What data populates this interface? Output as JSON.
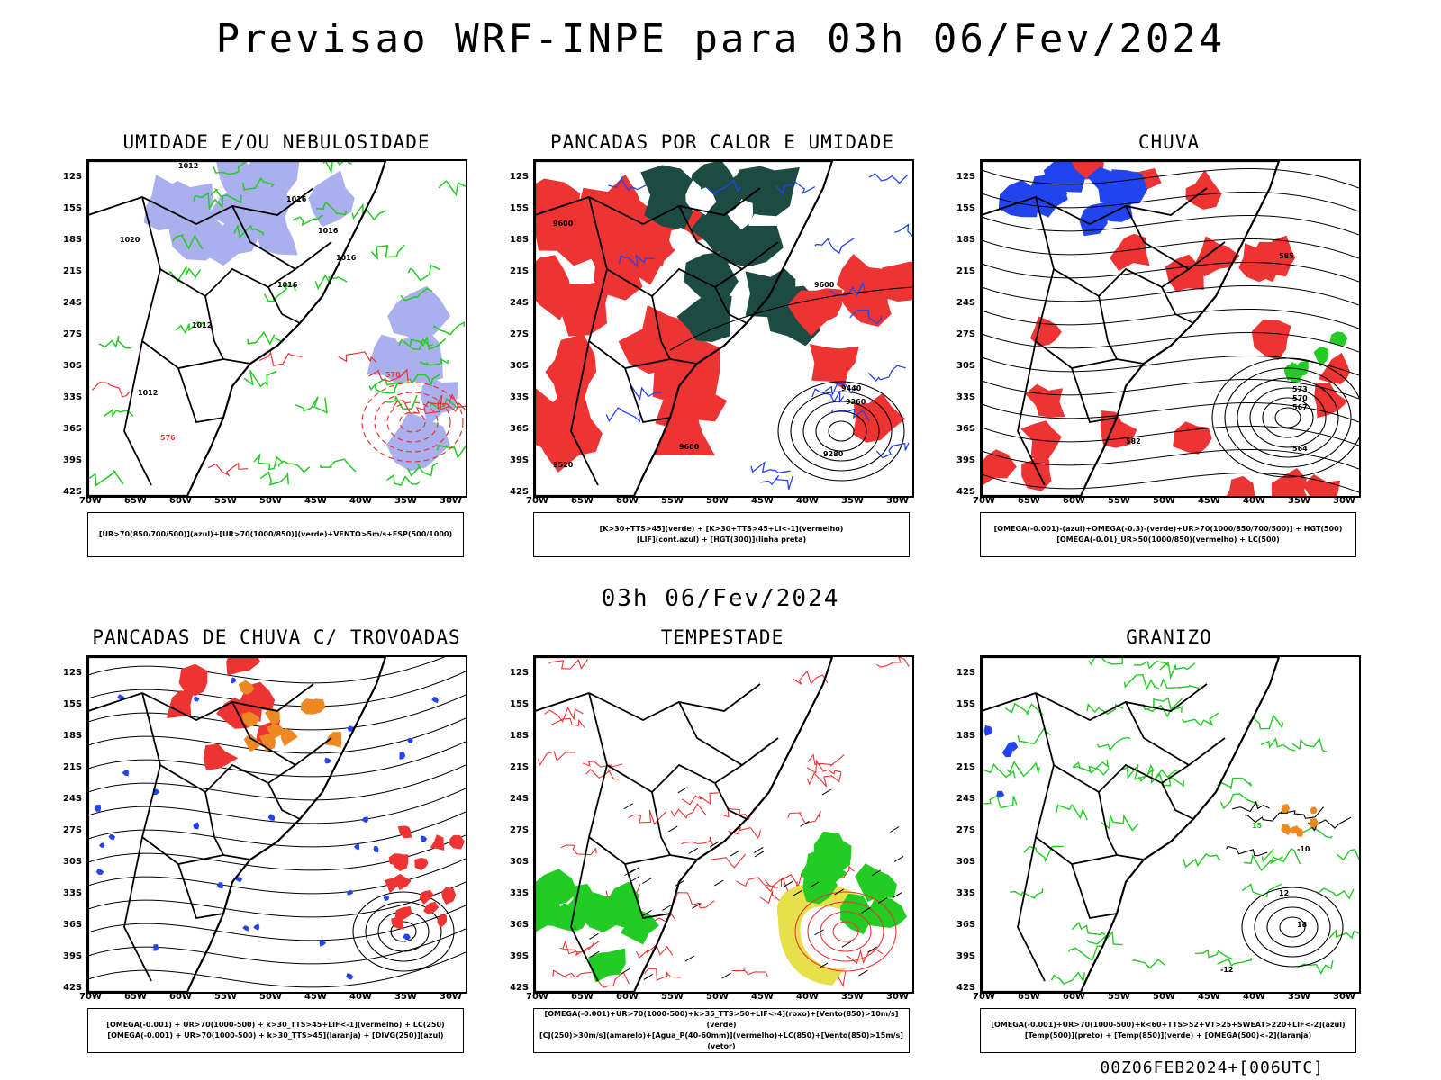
{
  "header": {
    "main_title": "Previsao WRF-INPE  para 03h 06/Fev/2024",
    "mid_title": "03h 06/Fev/2024",
    "footer_stamp": "00Z06FEB2024+[006UTC]"
  },
  "axes": {
    "lat_ticks": [
      "12S",
      "15S",
      "18S",
      "21S",
      "24S",
      "27S",
      "30S",
      "33S",
      "36S",
      "39S",
      "42S"
    ],
    "lon_ticks": [
      "70W",
      "65W",
      "60W",
      "55W",
      "50W",
      "45W",
      "40W",
      "35W",
      "30W"
    ]
  },
  "colors": {
    "green": "#22cc22",
    "red": "#ee3333",
    "blue": "#2244ee",
    "lavender": "#aab0ee",
    "darkteal": "#1e4a44",
    "orange": "#ee8822",
    "yellow": "#e6e04a",
    "magenta": "#cc22cc",
    "black": "#000000"
  },
  "panels": [
    {
      "id": "umidade",
      "title": "UMIDADE E/OU NEBULOSIDADE",
      "legend": [
        "[UR>70(850/700/500)](azul)+[UR>70(1000/850)](verde)+VENTO>5m/s+ESP(500/1000)"
      ],
      "contour_labels": [
        "1012",
        "1016",
        "1016",
        "1016",
        "1012",
        "1012",
        "1020",
        "1016",
        "576",
        "570"
      ]
    },
    {
      "id": "pancadas_calor",
      "title": "PANCADAS POR CALOR E UMIDADE",
      "legend": [
        "[K>30+TTS>45](verde) + [K>30+TTS>45+LI<-1](vermelho)",
        "[LIF](cont.azul) + [HGT(300)](linha preta)"
      ],
      "contour_labels": [
        "9600",
        "9600",
        "9440",
        "9360",
        "9280",
        "9600",
        "9520"
      ]
    },
    {
      "id": "chuva",
      "title": "CHUVA",
      "legend": [
        "[OMEGA(-0.001)-(azul)+OMEGA(-0.3)-(verde)+UR>70(1000/850/700/500)] + HGT(500)",
        "[OMEGA(-0.01)_UR>50(1000/850)(vermelho) + LC(500)"
      ],
      "contour_labels": [
        "585",
        "573",
        "570",
        "567",
        "564",
        "582"
      ]
    },
    {
      "id": "pancadas_trovoadas",
      "title": "PANCADAS DE CHUVA C/ TROVOADAS",
      "legend": [
        "[OMEGA(-0.001) + UR>70(1000-500) + k>30_TTS>45+LIF<-1](vermelho) + LC(250)",
        "[OMEGA(-0.001) + UR>70(1000-500) + k>30_TTS>45](laranja) + [DIVG(250)](azul)"
      ],
      "contour_labels": []
    },
    {
      "id": "tempestade",
      "title": "TEMPESTADE",
      "legend": [
        "[OMEGA(-0.001)+UR>70(1000-500)+k>35_TTS>50+LIF<-4](roxo)+[Vento(850)>10m/s](verde)",
        "[CJ(250)>30m/s](amarelo)+[Agua_P(40-60mm)](vermelho)+LC(850)+[Vento(850)>15m/s](vetor)"
      ],
      "contour_labels": []
    },
    {
      "id": "granizo",
      "title": "GRANIZO",
      "legend": [
        "[OMEGA(-0.001)+UR>70(1000-500)+k<60+TTS>52+VT>25+SWEAT>220+LIF<-2](azul)",
        "[Temp(500)](preto) + [Temp(850)](verde) + [OMEGA(500)<-2](laranja)"
      ],
      "contour_labels": [
        "12",
        "15",
        "18",
        "-10",
        "-12"
      ]
    }
  ]
}
